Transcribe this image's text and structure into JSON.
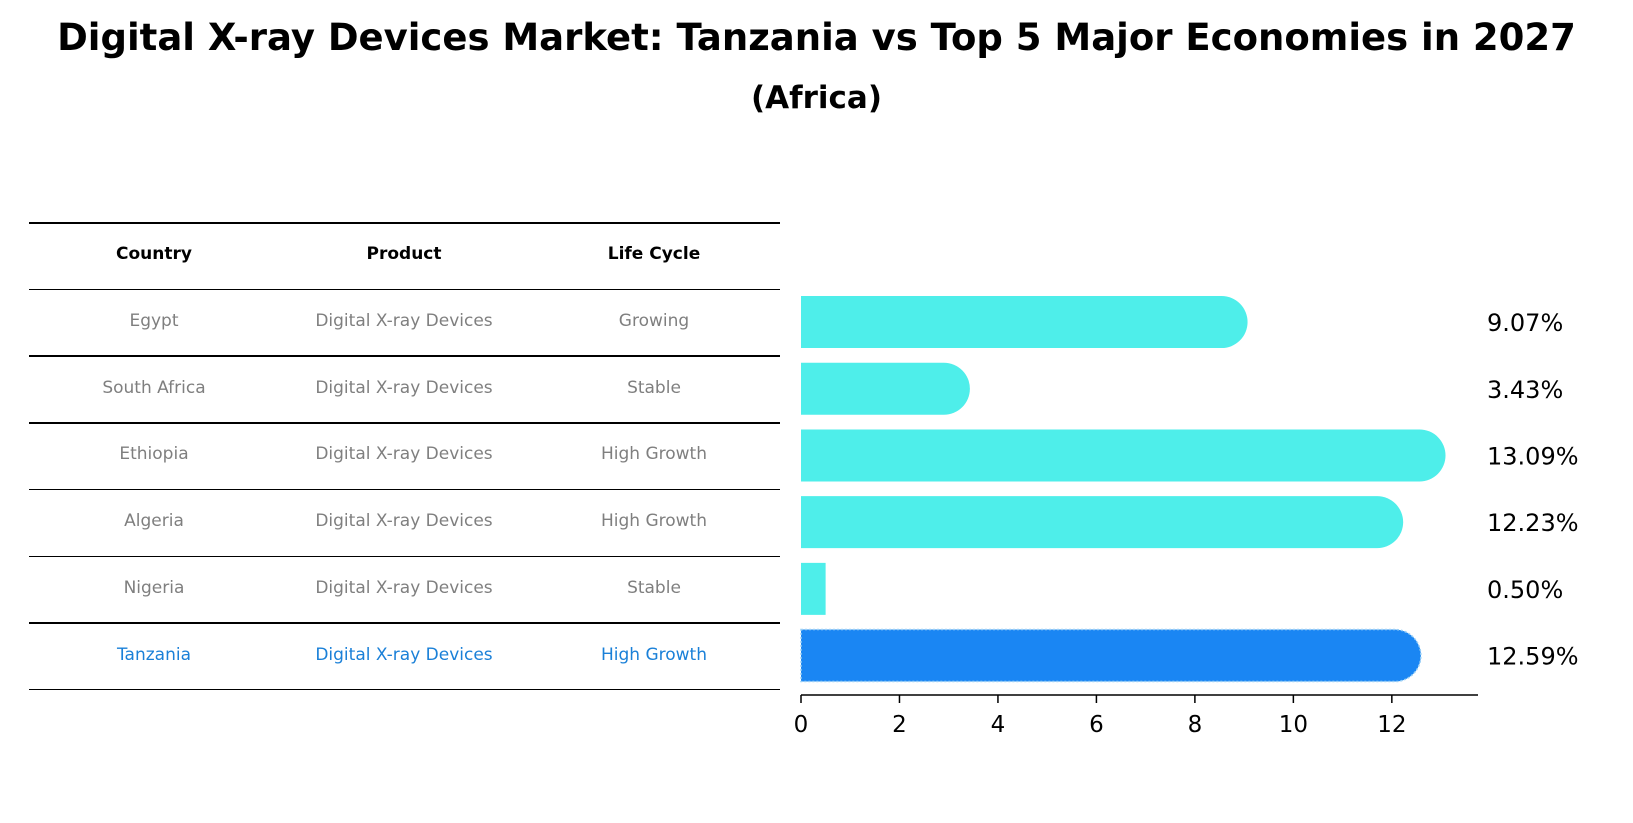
{
  "title": "Digital X-ray Devices Market: Tanzania vs Top 5 Major Economies in 2027",
  "subtitle": "(Africa)",
  "table": {
    "headers": [
      "Country",
      "Product",
      "Life Cycle"
    ],
    "rows": [
      {
        "country": "Egypt",
        "product": "Digital X-ray Devices",
        "life_cycle": "Growing",
        "highlight": false
      },
      {
        "country": "South Africa",
        "product": "Digital X-ray Devices",
        "life_cycle": "Stable",
        "highlight": false
      },
      {
        "country": "Ethiopia",
        "product": "Digital X-ray Devices",
        "life_cycle": "High Growth",
        "highlight": false
      },
      {
        "country": "Algeria",
        "product": "Digital X-ray Devices",
        "life_cycle": "High Growth",
        "highlight": false
      },
      {
        "country": "Nigeria",
        "product": "Digital X-ray Devices",
        "life_cycle": "Stable",
        "highlight": false
      },
      {
        "country": "Tanzania",
        "product": "Digital X-ray Devices",
        "life_cycle": "High Growth",
        "highlight": true
      }
    ]
  },
  "chart_data": {
    "type": "bar",
    "orientation": "horizontal",
    "categories": [
      "Egypt",
      "South Africa",
      "Ethiopia",
      "Algeria",
      "Nigeria",
      "Tanzania"
    ],
    "values": [
      9.07,
      3.43,
      13.09,
      12.23,
      0.5,
      12.59
    ],
    "value_labels": [
      "9.07%",
      "3.43%",
      "13.09%",
      "12.23%",
      "0.50%",
      "12.59%"
    ],
    "highlight_index": 5,
    "xlim": [
      0,
      13.75
    ],
    "xticks": [
      0,
      2,
      4,
      6,
      8,
      10,
      12
    ],
    "grid": false,
    "colors": {
      "default": "#4eeeea",
      "highlight": "#1a86f3"
    }
  }
}
